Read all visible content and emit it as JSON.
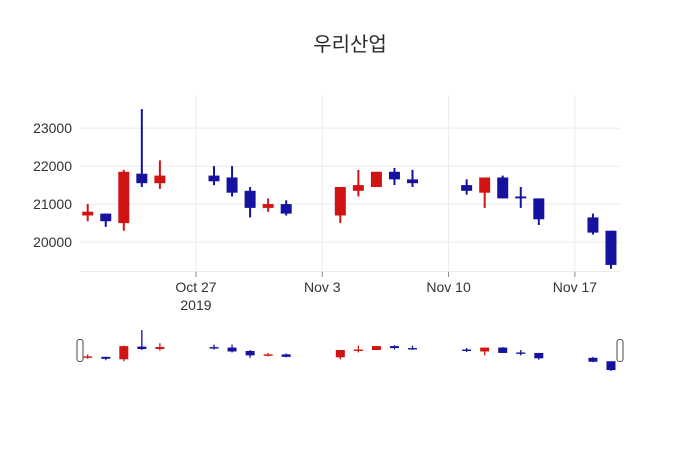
{
  "chart_data": {
    "type": "candlestick",
    "title": "우리산업",
    "x": [
      "2019-10-21",
      "2019-10-22",
      "2019-10-23",
      "2019-10-24",
      "2019-10-25",
      "2019-10-28",
      "2019-10-29",
      "2019-10-30",
      "2019-10-31",
      "2019-11-01",
      "2019-11-04",
      "2019-11-05",
      "2019-11-06",
      "2019-11-07",
      "2019-11-08",
      "2019-11-11",
      "2019-11-12",
      "2019-11-13",
      "2019-11-14",
      "2019-11-15",
      "2019-11-18",
      "2019-11-19"
    ],
    "open": [
      20700,
      20750,
      20500,
      21800,
      21550,
      21750,
      21700,
      21350,
      20900,
      21000,
      20700,
      21350,
      21450,
      21850,
      21650,
      21500,
      21300,
      21700,
      21200,
      21150,
      20650,
      20300
    ],
    "high": [
      21000,
      20750,
      21900,
      23500,
      22150,
      22000,
      22000,
      21450,
      21150,
      21100,
      21450,
      21900,
      21850,
      21950,
      21900,
      21650,
      21700,
      21750,
      21450,
      21150,
      20750,
      20300
    ],
    "low": [
      20550,
      20400,
      20300,
      21450,
      21400,
      21500,
      21200,
      20650,
      20800,
      20700,
      20500,
      21200,
      21450,
      21500,
      21450,
      21250,
      20900,
      21150,
      20900,
      20450,
      20200,
      19300
    ],
    "close": [
      20800,
      20550,
      21850,
      21550,
      21750,
      21600,
      21300,
      20900,
      21000,
      20750,
      21450,
      21500,
      21850,
      21650,
      21550,
      21350,
      21700,
      21150,
      21150,
      20600,
      20250,
      19400
    ],
    "increasing_color": "#d01414",
    "decreasing_color": "#1512a0",
    "xlim": [
      "2019-10-20T13:45:00Z",
      "2019-11-19T12:00:00Z"
    ],
    "ylim": [
      19240,
      23870
    ],
    "grid": true,
    "legend": "none",
    "xticks": [
      {
        "date": "2019-10-27",
        "label": "Oct 27",
        "sublabel": "2019"
      },
      {
        "date": "2019-11-03",
        "label": "Nov 3",
        "sublabel": ""
      },
      {
        "date": "2019-11-10",
        "label": "Nov 10",
        "sublabel": ""
      },
      {
        "date": "2019-11-17",
        "label": "Nov 17",
        "sublabel": ""
      }
    ],
    "yticks": [
      {
        "value": 20000,
        "label": "20000"
      },
      {
        "value": 21000,
        "label": "21000"
      },
      {
        "value": 22000,
        "label": "22000"
      },
      {
        "value": 23000,
        "label": "23000"
      }
    ],
    "rangeslider": {
      "visible": true,
      "ylim": [
        19300,
        23500
      ]
    }
  },
  "colors": {
    "background": "#ffffff",
    "grid": "#ebebeb",
    "tick": "#888888",
    "text": "#333333",
    "handle_border": "#4a4a4a",
    "handle_fill": "#ffffff"
  }
}
